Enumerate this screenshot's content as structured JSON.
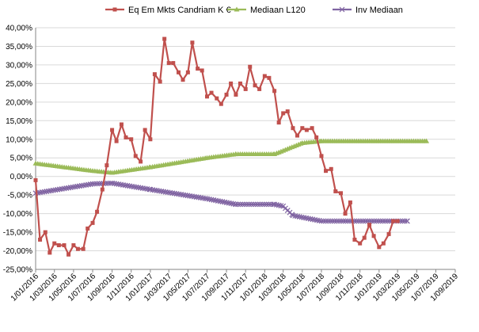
{
  "chart_data": {
    "type": "line",
    "title": "",
    "xlabel": "",
    "ylabel": "",
    "ylim": [
      -0.25,
      0.4
    ],
    "yticks": [
      0.4,
      0.35,
      0.3,
      0.25,
      0.2,
      0.15,
      0.1,
      0.05,
      0.0,
      -0.05,
      -0.1,
      -0.15,
      -0.2,
      -0.25
    ],
    "ytick_labels": [
      "40,00%",
      "35,00%",
      "30,00%",
      "25,00%",
      "20,00%",
      "15,00%",
      "10,00%",
      "5,00%",
      "0,00%",
      "-5,00%",
      "-10,00%",
      "-15,00%",
      "-20,00%",
      "-25,00%"
    ],
    "xlim": [
      "2016-01-01",
      "2019-09-01"
    ],
    "xtick_labels": [
      "1/01/2016",
      "1/03/2016",
      "1/05/2016",
      "1/07/2016",
      "1/09/2016",
      "1/11/2016",
      "1/01/2017",
      "1/03/2017",
      "1/05/2017",
      "1/07/2017",
      "1/09/2017",
      "1/11/2017",
      "1/01/2018",
      "1/03/2018",
      "1/05/2018",
      "1/07/2018",
      "1/09/2018",
      "1/11/2018",
      "1/01/2019",
      "1/03/2019",
      "1/05/2019",
      "1/07/2019",
      "1/09/2019"
    ],
    "xtick_dates": [
      "2016-01-01",
      "2016-03-01",
      "2016-05-01",
      "2016-07-01",
      "2016-09-01",
      "2016-11-01",
      "2017-01-01",
      "2017-03-01",
      "2017-05-01",
      "2017-07-01",
      "2017-09-01",
      "2017-11-01",
      "2018-01-01",
      "2018-03-01",
      "2018-05-01",
      "2018-07-01",
      "2018-09-01",
      "2018-11-01",
      "2019-01-01",
      "2019-03-01",
      "2019-05-01",
      "2019-07-01",
      "2019-09-01"
    ],
    "grid": "horizontal",
    "legend_position": "top",
    "series": [
      {
        "name": "Eq Em Mkts Candriam K €",
        "color": "#c0504d",
        "marker": "square",
        "dates": [
          "2016-01-01",
          "2016-01-15",
          "2016-02-01",
          "2016-02-15",
          "2016-03-01",
          "2016-03-15",
          "2016-04-01",
          "2016-04-15",
          "2016-05-01",
          "2016-05-15",
          "2016-06-01",
          "2016-06-15",
          "2016-07-01",
          "2016-07-15",
          "2016-08-01",
          "2016-08-15",
          "2016-09-01",
          "2016-09-15",
          "2016-10-01",
          "2016-10-15",
          "2016-11-01",
          "2016-11-15",
          "2016-12-01",
          "2016-12-15",
          "2017-01-01",
          "2017-01-15",
          "2017-02-01",
          "2017-02-15",
          "2017-03-01",
          "2017-03-15",
          "2017-04-01",
          "2017-04-15",
          "2017-05-01",
          "2017-05-15",
          "2017-06-01",
          "2017-06-15",
          "2017-07-01",
          "2017-07-15",
          "2017-08-01",
          "2017-08-15",
          "2017-09-01",
          "2017-09-15",
          "2017-10-01",
          "2017-10-15",
          "2017-11-01",
          "2017-11-15",
          "2017-12-01",
          "2017-12-15",
          "2018-01-01",
          "2018-01-15",
          "2018-02-01",
          "2018-02-15",
          "2018-03-01",
          "2018-03-15",
          "2018-04-01",
          "2018-04-15",
          "2018-05-01",
          "2018-05-15",
          "2018-06-01",
          "2018-06-15",
          "2018-07-01",
          "2018-07-15",
          "2018-08-01",
          "2018-08-15",
          "2018-09-01",
          "2018-09-15",
          "2018-10-01",
          "2018-10-15",
          "2018-11-01",
          "2018-11-15",
          "2018-12-01",
          "2018-12-15",
          "2019-01-01",
          "2019-01-15",
          "2019-02-01",
          "2019-02-15",
          "2019-03-01"
        ],
        "values": [
          -0.01,
          -0.17,
          -0.15,
          -0.205,
          -0.18,
          -0.185,
          -0.185,
          -0.21,
          -0.185,
          -0.195,
          -0.195,
          -0.14,
          -0.125,
          -0.095,
          -0.035,
          0.03,
          0.125,
          0.095,
          0.14,
          0.105,
          0.1,
          0.055,
          0.04,
          0.125,
          0.1,
          0.275,
          0.255,
          0.37,
          0.305,
          0.305,
          0.28,
          0.26,
          0.28,
          0.36,
          0.29,
          0.285,
          0.215,
          0.225,
          0.21,
          0.195,
          0.22,
          0.25,
          0.22,
          0.25,
          0.235,
          0.295,
          0.245,
          0.235,
          0.27,
          0.265,
          0.23,
          0.145,
          0.17,
          0.175,
          0.13,
          0.11,
          0.13,
          0.125,
          0.13,
          0.105,
          0.055,
          0.015,
          0.02,
          -0.04,
          -0.045,
          -0.1,
          -0.07,
          -0.17,
          -0.18,
          -0.165,
          -0.13,
          -0.16,
          -0.19,
          -0.18,
          -0.155,
          -0.12,
          -0.12
        ]
      },
      {
        "name": "Mediaan L120",
        "color": "#9bbb59",
        "marker": "triangle",
        "points": [
          [
            "2016-01-01",
            0.035
          ],
          [
            "2016-07-01",
            0.015
          ],
          [
            "2016-09-01",
            0.01
          ],
          [
            "2017-01-01",
            0.025
          ],
          [
            "2017-07-01",
            0.05
          ],
          [
            "2017-10-01",
            0.06
          ],
          [
            "2018-02-01",
            0.06
          ],
          [
            "2018-05-01",
            0.09
          ],
          [
            "2018-07-01",
            0.095
          ],
          [
            "2019-06-01",
            0.095
          ]
        ]
      },
      {
        "name": "Inv Mediaan",
        "color": "#8064a2",
        "marker": "x",
        "points": [
          [
            "2016-01-01",
            -0.045
          ],
          [
            "2016-07-01",
            -0.02
          ],
          [
            "2016-09-01",
            -0.018
          ],
          [
            "2017-01-01",
            -0.035
          ],
          [
            "2017-07-01",
            -0.06
          ],
          [
            "2017-10-01",
            -0.075
          ],
          [
            "2018-02-01",
            -0.075
          ],
          [
            "2018-03-01",
            -0.08
          ],
          [
            "2018-04-01",
            -0.105
          ],
          [
            "2018-07-01",
            -0.12
          ],
          [
            "2019-04-01",
            -0.12
          ]
        ]
      }
    ]
  }
}
